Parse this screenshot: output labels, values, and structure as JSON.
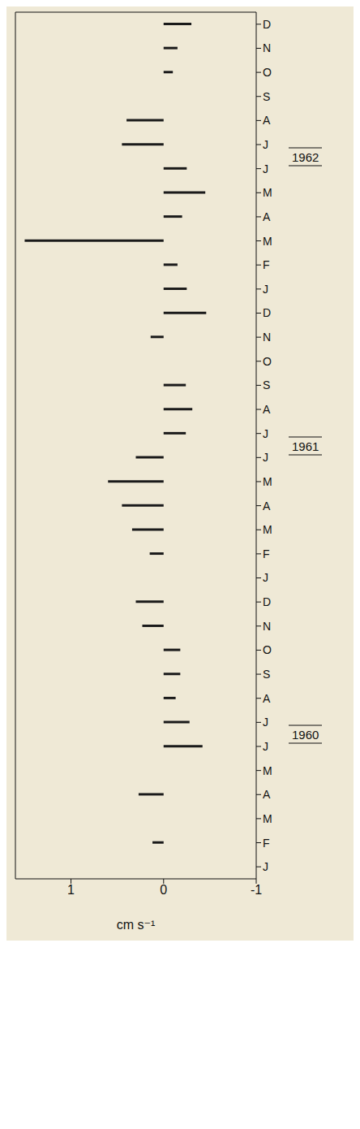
{
  "chart_data": {
    "type": "bar",
    "orientation": "horizontal",
    "ylabel": "cm s⁻¹",
    "annotations": [
      "1960",
      "1961",
      "1962"
    ],
    "categories": [
      "J",
      "F",
      "M",
      "A",
      "M",
      "J",
      "J",
      "A",
      "S",
      "O",
      "N",
      "D",
      "J",
      "F",
      "M",
      "A",
      "M",
      "J",
      "J",
      "A",
      "S",
      "O",
      "N",
      "D",
      "J",
      "F",
      "M",
      "A",
      "M",
      "J",
      "J",
      "A",
      "S",
      "O",
      "N",
      "D"
    ],
    "values": [
      0,
      0.12,
      0,
      0.27,
      0,
      -0.42,
      -0.28,
      -0.13,
      -0.18,
      -0.18,
      0.23,
      0.3,
      0,
      0.15,
      0.34,
      0.45,
      0.6,
      0.3,
      -0.24,
      -0.31,
      -0.24,
      0,
      0.14,
      -0.46,
      -0.25,
      -0.15,
      1.5,
      -0.2,
      -0.45,
      -0.25,
      0.45,
      0.4,
      0,
      -0.1,
      -0.15,
      -0.3
    ],
    "color": "#1a1a1a",
    "ylim": [
      -1,
      1.6
    ],
    "yticks": [
      -1,
      0,
      1
    ],
    "grid": false
  }
}
